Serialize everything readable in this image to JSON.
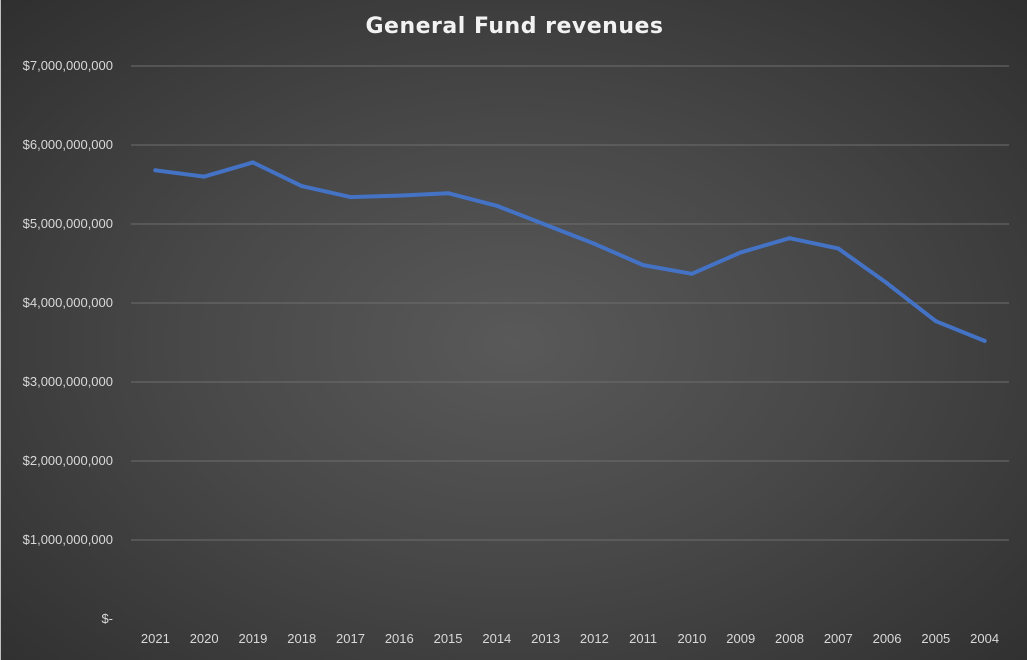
{
  "chart_data": {
    "type": "line",
    "title": "General Fund revenues",
    "xlabel": "",
    "ylabel": "",
    "categories": [
      "2021",
      "2020",
      "2019",
      "2018",
      "2017",
      "2016",
      "2015",
      "2014",
      "2013",
      "2012",
      "2011",
      "2010",
      "2009",
      "2008",
      "2007",
      "2006",
      "2005",
      "2004"
    ],
    "series": [
      {
        "values": [
          5680000000,
          5600000000,
          5780000000,
          5480000000,
          5340000000,
          5360000000,
          5390000000,
          5230000000,
          4990000000,
          4750000000,
          4480000000,
          4370000000,
          4640000000,
          4820000000,
          4690000000,
          4250000000,
          3770000000,
          3520000000
        ],
        "color": "#4472c4"
      }
    ],
    "ylim": [
      0,
      7000000000
    ],
    "ytick_values": [
      0,
      1000000000,
      2000000000,
      3000000000,
      4000000000,
      5000000000,
      6000000000,
      7000000000
    ],
    "ytick_labels": [
      "$-",
      "$1,000,000,000",
      "$2,000,000,000",
      "$3,000,000,000",
      "$4,000,000,000",
      "$5,000,000,000",
      "$6,000,000,000",
      "$7,000,000,000"
    ],
    "grid": true,
    "legend": "none"
  }
}
